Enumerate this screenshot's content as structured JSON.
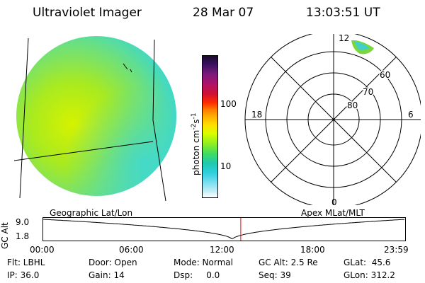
{
  "header": {
    "instrument": "Ultraviolet Imager",
    "date": "28 Mar 07",
    "time": "13:03:51 UT"
  },
  "colorbar": {
    "label": "photon cm",
    "exp1": "-2",
    "mid": "s",
    "exp2": "-1",
    "ticks": [
      "100",
      "10"
    ],
    "colors": [
      "#1a0a2a",
      "#3a1060",
      "#7a1a7a",
      "#b0106a",
      "#d01030",
      "#ff2a00",
      "#ff7a00",
      "#ffb000",
      "#ffe000",
      "#d8ff00",
      "#90ee20",
      "#40dd60",
      "#20c8b0",
      "#30d0e0",
      "#80e0f0",
      "#c8eef8",
      "#ffffff"
    ]
  },
  "polar_plot": {
    "mlt_labels": [
      "12",
      "18",
      "6",
      "0"
    ],
    "lat_labels": [
      "60",
      "70",
      "80"
    ]
  },
  "map_labels": {
    "left": "Geographic Lat/Lon",
    "right": "Apex MLat/MLT"
  },
  "altitude_plot": {
    "ylabel": "GC Alt",
    "y_ticks": [
      "9.0",
      "1.8"
    ],
    "x_ticks": [
      "00:00",
      "06:00",
      "12:00",
      "18:00",
      "23:59"
    ],
    "marker_time": "13:03:51",
    "colors": {
      "trace": "#000000",
      "marker": "#ff0000"
    }
  },
  "info": {
    "row1": [
      "Flt: LBHL",
      "Door: Open",
      "Mode: Normal",
      "GC Alt: 2.5 Re",
      "GLat:  45.6"
    ],
    "row2": [
      "IP: 36.0",
      "Gain: 14",
      "Dsp:     0.0",
      "Seq: 39",
      "GLon: 312.2"
    ]
  }
}
